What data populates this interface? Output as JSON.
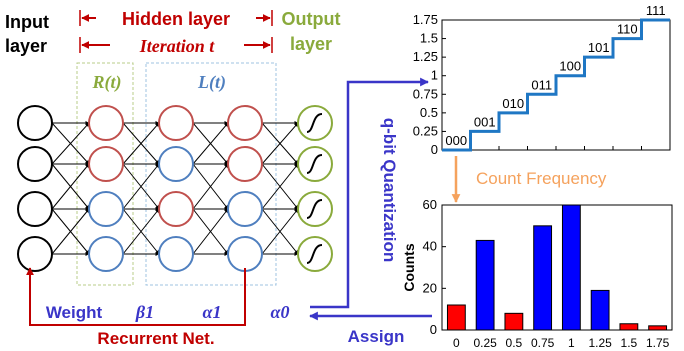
{
  "colors": {
    "red": "#c00000",
    "green": "#8aaa3c",
    "blue": "#3a35c8",
    "steel": "#4f7fbf",
    "node_red": "#c0504d",
    "orange": "#f5a25d",
    "bar_red": "#ff0000",
    "bar_blue": "#0000ff",
    "step_line": "#1f77c4"
  },
  "diagram": {
    "input_label_1": "Input",
    "input_label_2": "layer",
    "hidden_label": "Hidden layer",
    "iteration_label": "Iteration t",
    "output_label_1": "Output",
    "output_label_2": "layer",
    "r_label": "R(t)",
    "l_label": "L(t)",
    "weight_label": "Weight",
    "beta_label": "β1",
    "alpha1_label": "α1",
    "alpha0_label": "α0",
    "recurrent_label": "Recurrent Net.",
    "assign_label": "Assign",
    "quantization_label": "q-bit Quantization",
    "count_frequency_label": "Count Frequency"
  },
  "chart_data": [
    {
      "type": "line",
      "step": true,
      "x": [
        0,
        1,
        2,
        3,
        4,
        5,
        6,
        7
      ],
      "y": [
        0,
        0.25,
        0.5,
        0.75,
        1,
        1.25,
        1.5,
        1.75
      ],
      "codes": [
        "000",
        "001",
        "010",
        "011",
        "100",
        "101",
        "110",
        "111"
      ],
      "yticks": [
        "0",
        "0.25",
        "0.5",
        "0.75",
        "1",
        "1.25",
        "1.5",
        "1.75"
      ],
      "ylim": [
        0,
        1.75
      ],
      "title": "",
      "xlabel": "",
      "ylabel": ""
    },
    {
      "type": "bar",
      "categories": [
        "0",
        "0.25",
        "0.5",
        "0.75",
        "1",
        "1.25",
        "1.5",
        "1.75"
      ],
      "values": [
        12,
        43,
        8,
        50,
        60,
        19,
        3,
        2
      ],
      "bar_colors": [
        "#ff0000",
        "#0000ff",
        "#ff0000",
        "#0000ff",
        "#0000ff",
        "#0000ff",
        "#ff0000",
        "#ff0000"
      ],
      "yticks": [
        "0",
        "20",
        "40",
        "60"
      ],
      "ylim": [
        0,
        60
      ],
      "ylabel": "Counts",
      "title": "",
      "xlabel": ""
    }
  ]
}
